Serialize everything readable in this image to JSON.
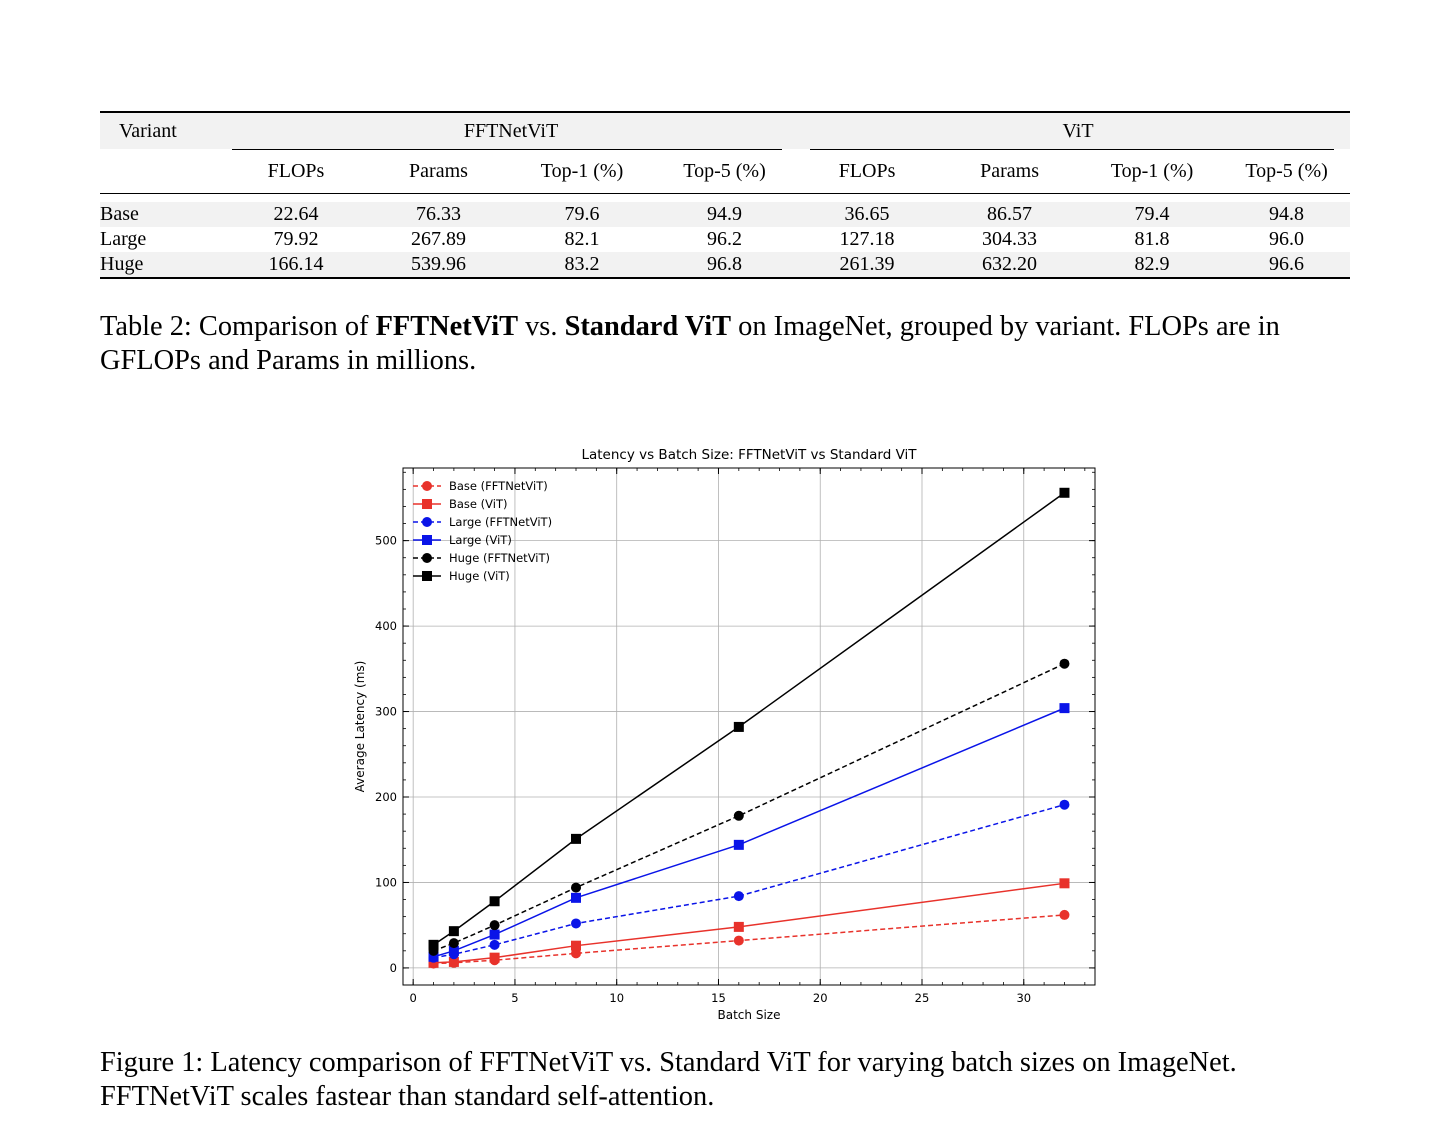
{
  "table": {
    "variant_header": "Variant",
    "groups": [
      "FFTNetViT",
      "ViT"
    ],
    "columns": [
      "FLOPs",
      "Params",
      "Top-1 (%)",
      "Top-5 (%)",
      "FLOPs",
      "Params",
      "Top-1 (%)",
      "Top-5 (%)"
    ],
    "rows": [
      {
        "variant": "Base",
        "values": [
          "22.64",
          "76.33",
          "79.6",
          "94.9",
          "36.65",
          "86.57",
          "79.4",
          "94.8"
        ]
      },
      {
        "variant": "Large",
        "values": [
          "79.92",
          "267.89",
          "82.1",
          "96.2",
          "127.18",
          "304.33",
          "81.8",
          "96.0"
        ]
      },
      {
        "variant": "Huge",
        "values": [
          "166.14",
          "539.96",
          "83.2",
          "96.8",
          "261.39",
          "632.20",
          "82.9",
          "96.6"
        ]
      }
    ]
  },
  "table_caption": {
    "prefix": "Table 2: Comparison of ",
    "bold1": "FFTNetViT",
    "mid": " vs. ",
    "bold2": "Standard ViT",
    "suffix": " on ImageNet, grouped by variant. FLOPs are in GFLOPs and Params in millions."
  },
  "chart_data": {
    "type": "line",
    "title": "Latency vs Batch Size: FFTNetViT vs Standard ViT",
    "xlabel": "Batch Size",
    "ylabel": "Average Latency (ms)",
    "xlim": [
      -0.5,
      33.5
    ],
    "ylim": [
      -20,
      585
    ],
    "xticks": [
      0,
      5,
      10,
      15,
      20,
      25,
      30
    ],
    "yticks": [
      0,
      100,
      200,
      300,
      400,
      500
    ],
    "grid": true,
    "legend_position": "top-left",
    "x": [
      1,
      2,
      4,
      8,
      16,
      32
    ],
    "series": [
      {
        "name": "Base (FFTNetViT)",
        "color": "#e8322b",
        "marker": "circle",
        "dashed": true,
        "values": [
          5,
          6,
          9,
          17,
          32,
          62
        ]
      },
      {
        "name": "Base (ViT)",
        "color": "#e8322b",
        "marker": "square",
        "dashed": false,
        "values": [
          6,
          7,
          12,
          26,
          48,
          99
        ]
      },
      {
        "name": "Large (FFTNetViT)",
        "color": "#0a14e8",
        "marker": "circle",
        "dashed": true,
        "values": [
          12,
          16,
          27,
          52,
          84,
          191
        ]
      },
      {
        "name": "Large (ViT)",
        "color": "#0a14e8",
        "marker": "square",
        "dashed": false,
        "values": [
          13,
          20,
          39,
          82,
          144,
          304
        ]
      },
      {
        "name": "Huge (FFTNetViT)",
        "color": "#000000",
        "marker": "circle",
        "dashed": true,
        "values": [
          20,
          29,
          50,
          94,
          178,
          356
        ]
      },
      {
        "name": "Huge (ViT)",
        "color": "#000000",
        "marker": "square",
        "dashed": false,
        "values": [
          27,
          43,
          78,
          151,
          282,
          556
        ]
      }
    ]
  },
  "figure_caption": "Figure 1: Latency comparison of FFTNetViT vs. Standard ViT for varying batch sizes on ImageNet. FFTNetViT scales fastear than standard self-attention."
}
